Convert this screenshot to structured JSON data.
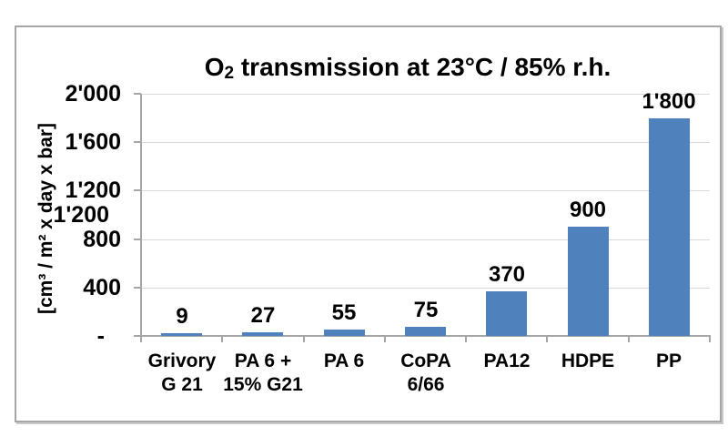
{
  "chart_data": {
    "type": "bar",
    "title": {
      "base": "O",
      "sub": "2",
      "rest": " transmission at 23°C / 85% r.h."
    },
    "ylabel": "[cm³ / m² x day x bar]",
    "categories": [
      "Grivory\nG 21",
      "PA 6 +\n15% G21",
      "PA 6",
      "CoPA\n6/66",
      "PA12",
      "HDPE",
      "PP"
    ],
    "values": [
      9,
      27,
      55,
      75,
      370,
      900,
      1800
    ],
    "value_labels": [
      "9",
      "27",
      "55",
      "75",
      "370",
      "900",
      "1'800"
    ],
    "ylim": [
      0,
      2000
    ],
    "yticks": [
      {
        "label": "2'000",
        "value": 2000
      },
      {
        "label": "1'600",
        "value": 1600
      },
      {
        "label": "1'200",
        "value": 1200
      },
      {
        "label": "800",
        "value": 800
      },
      {
        "label": "400",
        "value": 400
      },
      {
        "label": "-",
        "value": 0
      }
    ],
    "stray_duplicate_tick_label": "1'200",
    "grid": true,
    "legend": false,
    "colors": {
      "bar": "#4f81bd",
      "gridline": "#d9d9d9",
      "axis": "#a6a6a6",
      "text": "#000000",
      "frame_border": "#a6a6a6"
    }
  }
}
